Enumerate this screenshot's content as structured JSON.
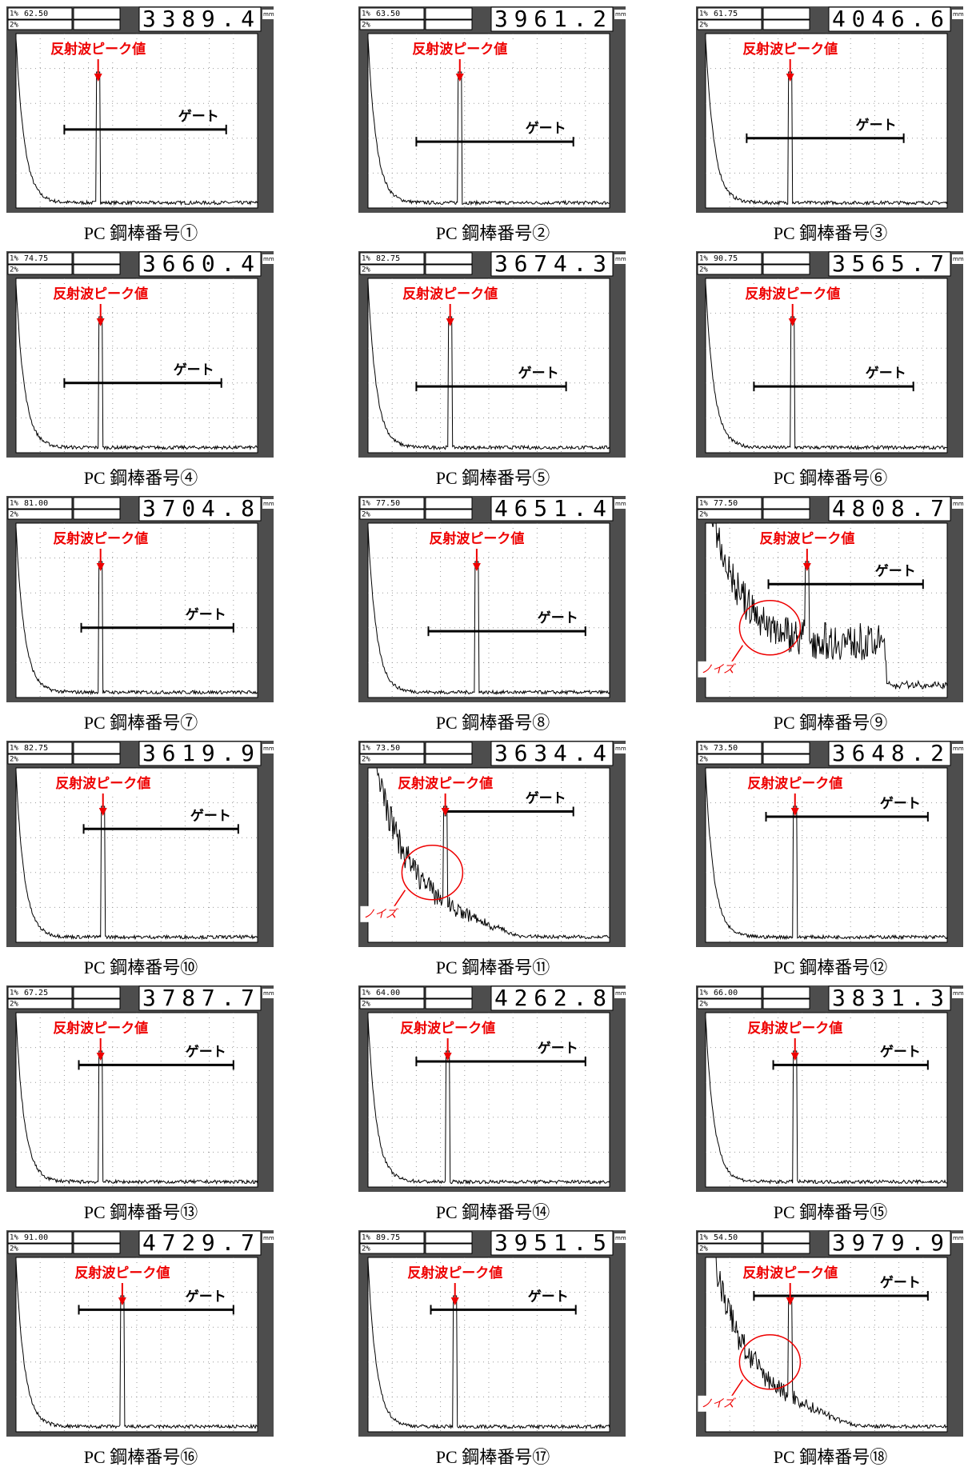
{
  "header_labels": [
    "1%",
    "2%"
  ],
  "unit": "mm",
  "panels": [
    {
      "gate_value": "62.50",
      "reading": "3389.4",
      "peak_label": "反射波ピーク値",
      "gate_label": "ゲート",
      "caption": "PC 鋼棒番号①"
    },
    {
      "gate_value": "63.50",
      "reading": "3961.2",
      "peak_label": "反射波ピーク値",
      "gate_label": "ゲート",
      "caption": "PC 鋼棒番号②"
    },
    {
      "gate_value": "61.75",
      "reading": "4046.6",
      "peak_label": "反射波ピーク値",
      "gate_label": "ゲート",
      "caption": "PC 鋼棒番号③"
    },
    {
      "gate_value": "74.75",
      "reading": "3660.4",
      "peak_label": "反射波ピーク値",
      "gate_label": "ゲート",
      "caption": "PC 鋼棒番号④"
    },
    {
      "gate_value": "82.75",
      "reading": "3674.3",
      "peak_label": "反射波ピーク値",
      "gate_label": "ゲート",
      "caption": "PC 鋼棒番号⑤"
    },
    {
      "gate_value": "90.75",
      "reading": "3565.7",
      "peak_label": "反射波ピーク値",
      "gate_label": "ゲート",
      "caption": "PC 鋼棒番号⑥"
    },
    {
      "gate_value": "81.00",
      "reading": "3704.8",
      "peak_label": "反射波ピーク値",
      "gate_label": "ゲート",
      "caption": "PC 鋼棒番号⑦"
    },
    {
      "gate_value": "77.50",
      "reading": "4651.4",
      "peak_label": "反射波ピーク値",
      "gate_label": "ゲート",
      "caption": "PC 鋼棒番号⑧"
    },
    {
      "gate_value": "77.50",
      "reading": "4808.7",
      "peak_label": "反射波ピーク値",
      "gate_label": "ゲート",
      "caption": "PC 鋼棒番号⑨",
      "noise_label": "ノイズ"
    },
    {
      "gate_value": "82.75",
      "reading": "3619.9",
      "peak_label": "反射波ピーク値",
      "gate_label": "ゲート",
      "caption": "PC 鋼棒番号⑩"
    },
    {
      "gate_value": "73.50",
      "reading": "3634.4",
      "peak_label": "反射波ピーク値",
      "gate_label": "ゲート",
      "caption": "PC 鋼棒番号⑪",
      "noise_label": "ノイズ"
    },
    {
      "gate_value": "73.50",
      "reading": "3648.2",
      "peak_label": "反射波ピーク値",
      "gate_label": "ゲート",
      "caption": "PC 鋼棒番号⑫"
    },
    {
      "gate_value": "67.25",
      "reading": "3787.7",
      "peak_label": "反射波ピーク値",
      "gate_label": "ゲート",
      "caption": "PC 鋼棒番号⑬"
    },
    {
      "gate_value": "64.00",
      "reading": "4262.8",
      "peak_label": "反射波ピーク値",
      "gate_label": "ゲート",
      "caption": "PC 鋼棒番号⑭"
    },
    {
      "gate_value": "66.00",
      "reading": "3831.3",
      "peak_label": "反射波ピーク値",
      "gate_label": "ゲート",
      "caption": "PC 鋼棒番号⑮"
    },
    {
      "gate_value": "91.00",
      "reading": "4729.7",
      "peak_label": "反射波ピーク値",
      "gate_label": "ゲート",
      "caption": "PC 鋼棒番号⑯"
    },
    {
      "gate_value": "89.75",
      "reading": "3951.5",
      "peak_label": "反射波ピーク値",
      "gate_label": "ゲート",
      "caption": "PC 鋼棒番号⑰"
    },
    {
      "gate_value": "54.50",
      "reading": "3979.9",
      "peak_label": "反射波ピーク値",
      "gate_label": "ゲート",
      "caption": "PC 鋼棒番号⑱",
      "noise_label": "ノイズ"
    }
  ]
}
